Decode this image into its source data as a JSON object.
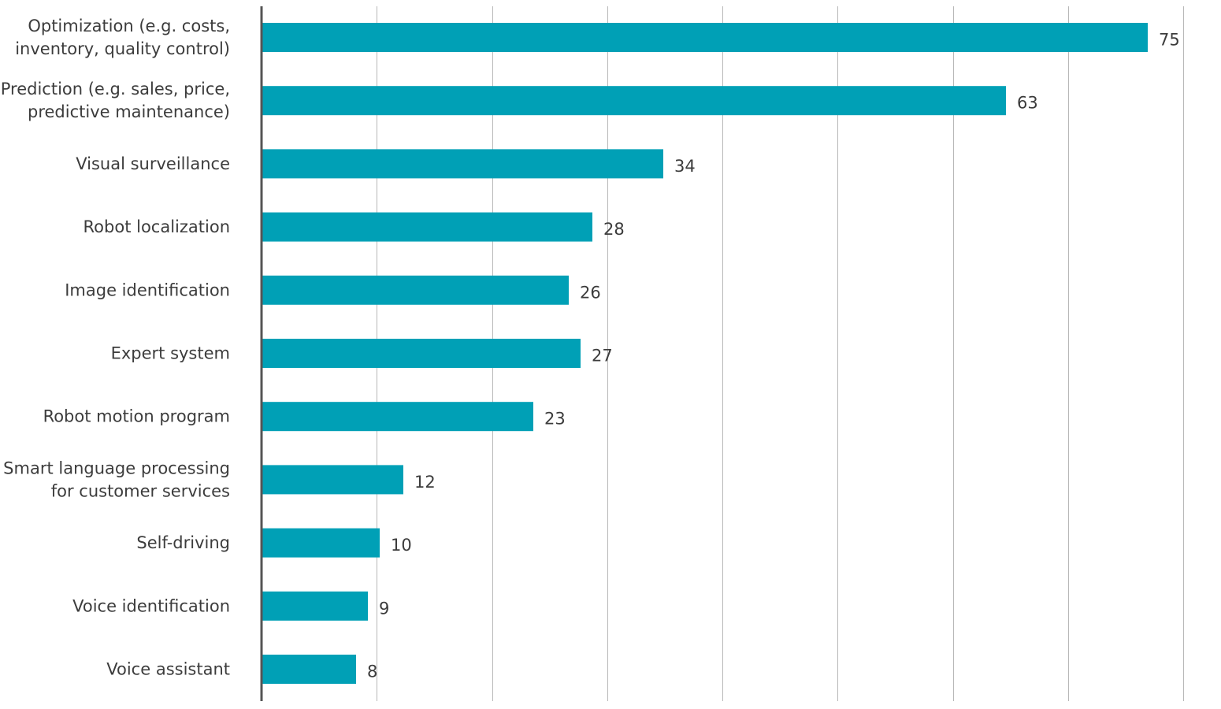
{
  "chart_data": {
    "type": "bar",
    "orientation": "horizontal",
    "title": "",
    "xlabel": "",
    "ylabel": "",
    "categories": [
      [
        "Optimization (e.g. costs,",
        "inventory, quality control)"
      ],
      [
        "Prediction (e.g. sales, price,",
        "predictive maintenance)"
      ],
      [
        "Visual surveillance"
      ],
      [
        "Robot localization"
      ],
      [
        "Image identification"
      ],
      [
        "Expert system"
      ],
      [
        "Robot motion program"
      ],
      [
        "Smart language processing",
        "for customer services"
      ],
      [
        "Self-driving"
      ],
      [
        "Voice identification"
      ],
      [
        "Voice assistant"
      ]
    ],
    "values": [
      75,
      63,
      34,
      28,
      26,
      27,
      23,
      12,
      10,
      9,
      8
    ],
    "xlim": [
      0,
      78
    ],
    "grid_step": 9.75,
    "grid": true,
    "legend": "none",
    "show_data_labels": true,
    "bar_color": "#00a0b6"
  }
}
